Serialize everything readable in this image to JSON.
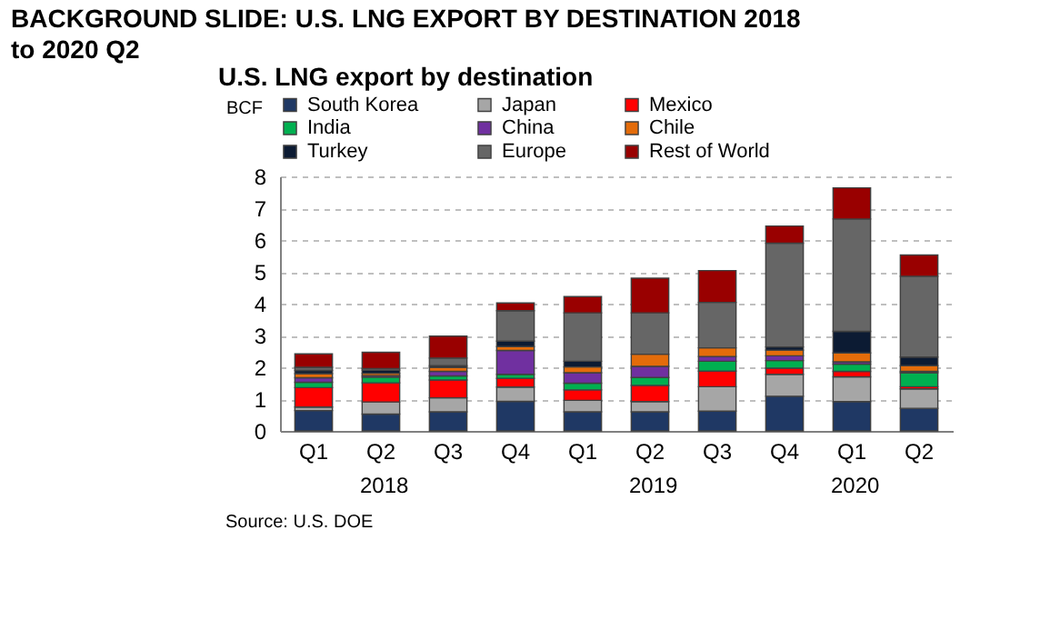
{
  "chart_data": {
    "type": "bar",
    "title": "BACKGROUND SLIDE:  U.S. LNG EXPORT BY DESTINATION 2018 to 2020 Q2",
    "subtitle": "U.S. LNG export by destination",
    "ylabel": "BCF",
    "categories": [
      "Q1",
      "Q2",
      "Q3",
      "Q4",
      "Q1",
      "Q2",
      "Q3",
      "Q4",
      "Q1",
      "Q2"
    ],
    "series": [
      {
        "name": "South Korea",
        "color": "#1f3864",
        "values": [
          0.64,
          0.53,
          0.6,
          0.93,
          0.6,
          0.6,
          0.62,
          1.09,
          0.92,
          0.71
        ]
      },
      {
        "name": "Japan",
        "color": "#a6a6a6",
        "values": [
          0.11,
          0.38,
          0.44,
          0.45,
          0.36,
          0.32,
          0.77,
          0.69,
          0.78,
          0.61
        ]
      },
      {
        "name": "Mexico",
        "color": "#ff0000",
        "values": [
          0.61,
          0.6,
          0.56,
          0.27,
          0.33,
          0.51,
          0.49,
          0.19,
          0.17,
          0.07
        ]
      },
      {
        "name": "India",
        "color": "#00b050",
        "values": [
          0.17,
          0.18,
          0.13,
          0.13,
          0.21,
          0.25,
          0.31,
          0.24,
          0.23,
          0.44
        ]
      },
      {
        "name": "China",
        "color": "#7030a0",
        "values": [
          0.14,
          0.05,
          0.14,
          0.75,
          0.33,
          0.35,
          0.15,
          0.15,
          0.07,
          0.04
        ]
      },
      {
        "name": "Chile",
        "color": "#e46c0a",
        "values": [
          0.13,
          0.07,
          0.13,
          0.12,
          0.18,
          0.38,
          0.27,
          0.18,
          0.28,
          0.18
        ]
      },
      {
        "name": "Turkey",
        "color": "#0c1b33",
        "values": [
          0.1,
          0.1,
          0.05,
          0.17,
          0.18,
          null,
          null,
          0.1,
          0.68,
          0.27
        ]
      },
      {
        "name": "Europe",
        "color": "#666666",
        "values": [
          0.1,
          0.05,
          0.24,
          0.96,
          1.52,
          1.3,
          1.43,
          3.26,
          3.53,
          2.54
        ]
      },
      {
        "name": "Rest of World",
        "color": "#990000",
        "values": [
          0.42,
          0.51,
          0.69,
          0.24,
          0.51,
          1.09,
          1.0,
          0.54,
          0.98,
          0.67
        ]
      }
    ],
    "stacked": true,
    "ylim": [
      0,
      8
    ],
    "yticks": [
      0,
      1,
      2,
      3,
      4,
      5,
      6,
      7,
      8
    ],
    "grid": "y",
    "legend": "top",
    "annotations": [
      "2018",
      "2019",
      "2020",
      "Source: U.S. DOE"
    ]
  }
}
